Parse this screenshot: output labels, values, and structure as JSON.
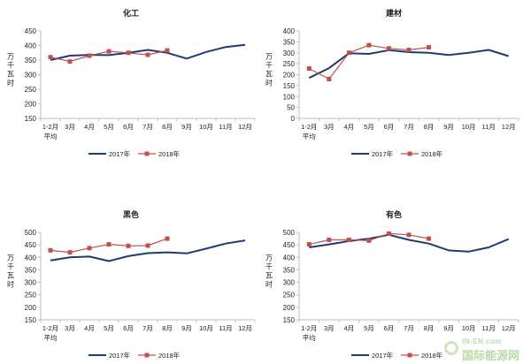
{
  "categories": [
    "1-2月",
    "3月",
    "4月",
    "5月",
    "6月",
    "7月",
    "8月",
    "9月",
    "10月",
    "11月",
    "12月"
  ],
  "category_sublabel": "平均",
  "y_unit_label": "万千瓦时",
  "series_names": [
    "2017年",
    "2018年"
  ],
  "colors": {
    "series_2017": "#1f3b73",
    "series_2018": "#c0504d",
    "axis": "#bfbfbf",
    "text": "#222222"
  },
  "watermark": {
    "top": "IN-EN.com",
    "bottom": "国际能源网"
  },
  "chart_data": [
    {
      "type": "line",
      "title": "化工",
      "ylim": [
        150,
        450
      ],
      "yticks": [
        150,
        200,
        250,
        300,
        350,
        400,
        450
      ],
      "series": [
        {
          "name": "2017年",
          "values": [
            350,
            365,
            368,
            367,
            375,
            385,
            375,
            355,
            378,
            395,
            402
          ]
        },
        {
          "name": "2018年",
          "values": [
            360,
            345,
            365,
            380,
            375,
            368,
            383
          ]
        }
      ]
    },
    {
      "type": "line",
      "title": "建材",
      "ylim": [
        0,
        400
      ],
      "yticks": [
        0,
        50,
        100,
        150,
        200,
        250,
        300,
        350,
        400
      ],
      "series": [
        {
          "name": "2017年",
          "values": [
            185,
            230,
            298,
            295,
            312,
            303,
            300,
            290,
            300,
            313,
            285
          ]
        },
        {
          "name": "2018年",
          "values": [
            228,
            180,
            300,
            335,
            320,
            313,
            325
          ]
        }
      ]
    },
    {
      "type": "line",
      "title": "黑色",
      "ylim": [
        150,
        500
      ],
      "yticks": [
        150,
        200,
        250,
        300,
        350,
        400,
        450,
        500
      ],
      "series": [
        {
          "name": "2017年",
          "values": [
            388,
            400,
            403,
            385,
            405,
            417,
            420,
            416,
            435,
            455,
            468
          ]
        },
        {
          "name": "2018年",
          "values": [
            428,
            420,
            437,
            452,
            446,
            447,
            475
          ]
        }
      ]
    },
    {
      "type": "line",
      "title": "有色",
      "ylim": [
        150,
        500
      ],
      "yticks": [
        150,
        200,
        250,
        300,
        350,
        400,
        450,
        500
      ],
      "series": [
        {
          "name": "2017年",
          "values": [
            440,
            452,
            465,
            475,
            490,
            470,
            455,
            428,
            423,
            440,
            473
          ]
        },
        {
          "name": "2018年",
          "values": [
            452,
            470,
            470,
            467,
            495,
            490,
            475
          ]
        }
      ]
    }
  ]
}
